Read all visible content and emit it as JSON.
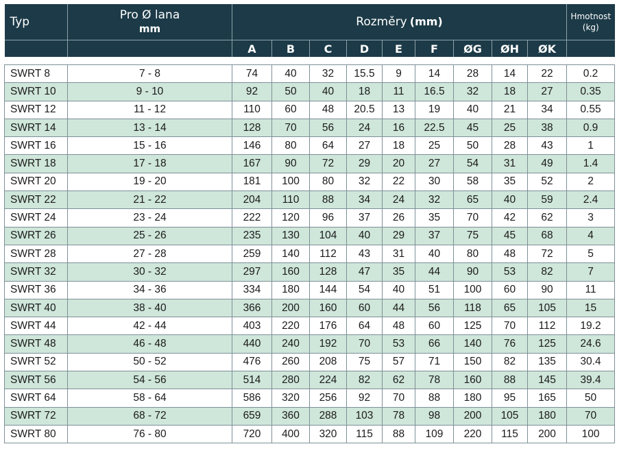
{
  "colors": {
    "header_bg": "#1c3a47",
    "header_text": "#ffffff",
    "stripe": "#cfe6da",
    "border": "#7c8f96"
  },
  "header": {
    "typ": "Typ",
    "pro_line1": "Pro Ø lana",
    "pro_line2": "mm",
    "rozmery": "Rozměry",
    "rozmery_unit": "(mm)",
    "hmotnost_line1": "Hmotnost",
    "hmotnost_line2": "(kg)",
    "dims": [
      "A",
      "B",
      "C",
      "D",
      "E",
      "F",
      "ØG",
      "ØH",
      "ØK"
    ]
  },
  "rows": [
    [
      "SWRT 8",
      "7 - 8",
      "74",
      "40",
      "32",
      "15.5",
      "9",
      "14",
      "28",
      "14",
      "22",
      "0.2"
    ],
    [
      "SWRT 10",
      "9 - 10",
      "92",
      "50",
      "40",
      "18",
      "11",
      "16.5",
      "32",
      "18",
      "27",
      "0.35"
    ],
    [
      "SWRT 12",
      "11 - 12",
      "110",
      "60",
      "48",
      "20.5",
      "13",
      "19",
      "40",
      "21",
      "34",
      "0.55"
    ],
    [
      "SWRT 14",
      "13 - 14",
      "128",
      "70",
      "56",
      "24",
      "16",
      "22.5",
      "45",
      "25",
      "38",
      "0.9"
    ],
    [
      "SWRT 16",
      "15 - 16",
      "146",
      "80",
      "64",
      "27",
      "18",
      "25",
      "50",
      "28",
      "43",
      "1"
    ],
    [
      "SWRT 18",
      "17 - 18",
      "167",
      "90",
      "72",
      "29",
      "20",
      "27",
      "54",
      "31",
      "49",
      "1.4"
    ],
    [
      "SWRT 20",
      "19 - 20",
      "181",
      "100",
      "80",
      "32",
      "22",
      "30",
      "58",
      "35",
      "52",
      "2"
    ],
    [
      "SWRT 22",
      "21 - 22",
      "204",
      "110",
      "88",
      "34",
      "24",
      "32",
      "65",
      "40",
      "59",
      "2.4"
    ],
    [
      "SWRT 24",
      "23 - 24",
      "222",
      "120",
      "96",
      "37",
      "26",
      "35",
      "70",
      "42",
      "62",
      "3"
    ],
    [
      "SWRT 26",
      "25 - 26",
      "235",
      "130",
      "104",
      "40",
      "29",
      "37",
      "75",
      "45",
      "68",
      "4"
    ],
    [
      "SWRT 28",
      "27 - 28",
      "259",
      "140",
      "112",
      "43",
      "31",
      "40",
      "80",
      "48",
      "72",
      "5"
    ],
    [
      "SWRT 32",
      "30 - 32",
      "297",
      "160",
      "128",
      "47",
      "35",
      "44",
      "90",
      "53",
      "82",
      "7"
    ],
    [
      "SWRT 36",
      "34 - 36",
      "334",
      "180",
      "144",
      "54",
      "40",
      "51",
      "100",
      "60",
      "90",
      "11"
    ],
    [
      "SWRT 40",
      "38 - 40",
      "366",
      "200",
      "160",
      "60",
      "44",
      "56",
      "118",
      "65",
      "105",
      "15"
    ],
    [
      "SWRT 44",
      "42 - 44",
      "403",
      "220",
      "176",
      "64",
      "48",
      "60",
      "125",
      "70",
      "112",
      "19.2"
    ],
    [
      "SWRT 48",
      "46 - 48",
      "440",
      "240",
      "192",
      "70",
      "53",
      "66",
      "140",
      "76",
      "125",
      "24.6"
    ],
    [
      "SWRT 52",
      "50 - 52",
      "476",
      "260",
      "208",
      "75",
      "57",
      "71",
      "150",
      "82",
      "135",
      "30.4"
    ],
    [
      "SWRT 56",
      "54 - 56",
      "514",
      "280",
      "224",
      "82",
      "62",
      "78",
      "160",
      "88",
      "145",
      "39.4"
    ],
    [
      "SWRT 64",
      "58 - 64",
      "586",
      "320",
      "256",
      "92",
      "70",
      "88",
      "180",
      "95",
      "165",
      "50"
    ],
    [
      "SWRT 72",
      "68 - 72",
      "659",
      "360",
      "288",
      "103",
      "78",
      "98",
      "200",
      "105",
      "180",
      "70"
    ],
    [
      "SWRT 80",
      "76 - 80",
      "720",
      "400",
      "320",
      "115",
      "88",
      "109",
      "220",
      "115",
      "200",
      "100"
    ]
  ]
}
